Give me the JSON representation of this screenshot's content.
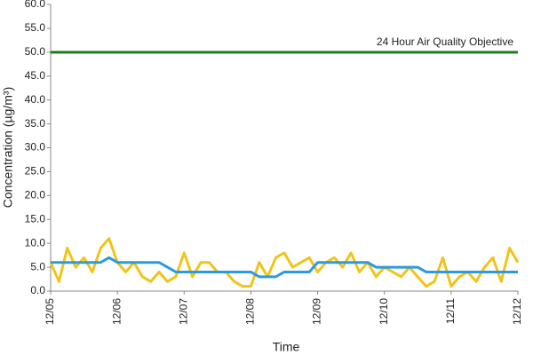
{
  "chart_data": {
    "type": "line",
    "xlabel": "Time",
    "ylabel": "Concentration (µg/m³)",
    "categories": [
      "12/05",
      null,
      null,
      null,
      null,
      null,
      null,
      null,
      "12/06",
      null,
      null,
      null,
      null,
      null,
      null,
      null,
      "12/07",
      null,
      null,
      null,
      null,
      null,
      null,
      null,
      "12/08",
      null,
      null,
      null,
      null,
      null,
      null,
      null,
      "12/09",
      null,
      null,
      null,
      null,
      null,
      null,
      null,
      "12/10",
      null,
      null,
      null,
      null,
      null,
      null,
      null,
      "12/11",
      null,
      null,
      null,
      null,
      null,
      null,
      null,
      "12/12"
    ],
    "series": [
      {
        "color": "#f0c419",
        "values": [
          6,
          2,
          9,
          5,
          7,
          4,
          9,
          11,
          6,
          4,
          6,
          3,
          2,
          4,
          2,
          3,
          8,
          3,
          6,
          6,
          4,
          4,
          2,
          1,
          1,
          6,
          3,
          7,
          8,
          5,
          6,
          7,
          4,
          6,
          7,
          5,
          8,
          4,
          6,
          3,
          5,
          4,
          3,
          5,
          3,
          1,
          2,
          7,
          1,
          3,
          4,
          2,
          5,
          7,
          2,
          9,
          6
        ]
      },
      {
        "color": "#2b9be0",
        "values": [
          6,
          6,
          6,
          6,
          6,
          6,
          6,
          7,
          6,
          6,
          6,
          6,
          6,
          6,
          5,
          4,
          4,
          4,
          4,
          4,
          4,
          4,
          4,
          4,
          4,
          3,
          3,
          3,
          4,
          4,
          4,
          4,
          6,
          6,
          6,
          6,
          6,
          6,
          6,
          5,
          5,
          5,
          5,
          5,
          5,
          4,
          4,
          4,
          4,
          4,
          4,
          4,
          4,
          4,
          4,
          4,
          4
        ]
      }
    ],
    "objective": {
      "label": "24 Hour Air Quality Objective",
      "value": 50,
      "color": "#1e7a1e"
    },
    "ylim": [
      0,
      60
    ],
    "yticks": [
      {
        "value": 0,
        "label": "0.0"
      },
      {
        "value": 5,
        "label": "5.0"
      },
      {
        "value": 10,
        "label": "10.0"
      },
      {
        "value": 15,
        "label": "15.0"
      },
      {
        "value": 20,
        "label": "20.0"
      },
      {
        "value": 25,
        "label": "25.0"
      },
      {
        "value": 30,
        "label": "30.0"
      },
      {
        "value": 35,
        "label": "35.0"
      },
      {
        "value": 40,
        "label": "40.0"
      },
      {
        "value": 45,
        "label": "45.0"
      },
      {
        "value": 50,
        "label": "50.0"
      },
      {
        "value": 55,
        "label": "55.0"
      },
      {
        "value": 60,
        "label": "60.0"
      }
    ],
    "grid": false
  }
}
